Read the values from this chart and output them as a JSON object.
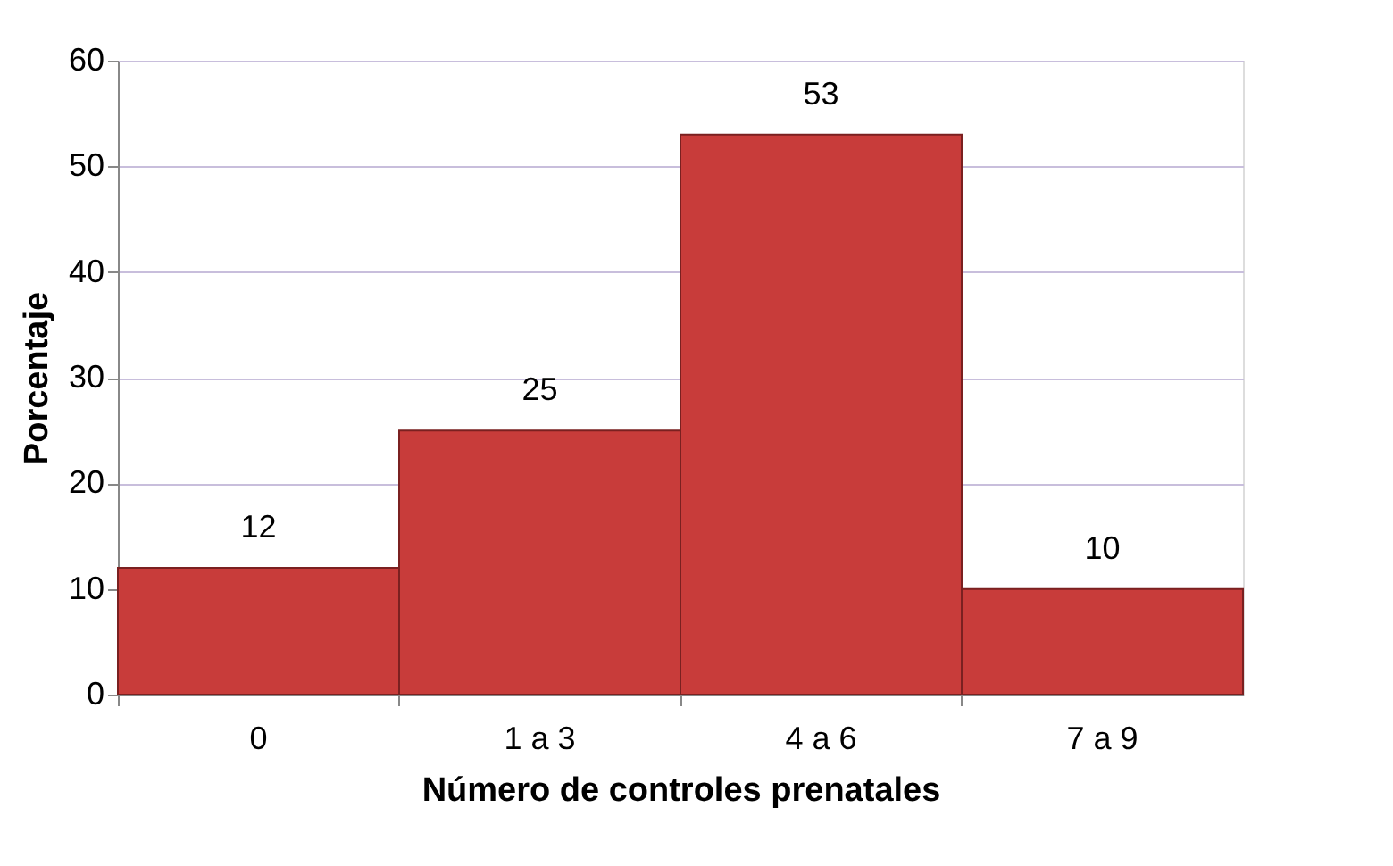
{
  "chart_data": {
    "type": "bar",
    "xlabel": "Número de controles prenatales",
    "ylabel": "Porcentaje",
    "categories": [
      "0",
      "1 a 3",
      "4 a 6",
      "7 a 9"
    ],
    "values": [
      12,
      25,
      53,
      10
    ],
    "color": "#c83c3a",
    "ylim": [
      0,
      60
    ],
    "yticks": [
      0,
      10,
      20,
      30,
      40,
      50,
      60
    ],
    "grid": "y",
    "data_labels": true
  }
}
